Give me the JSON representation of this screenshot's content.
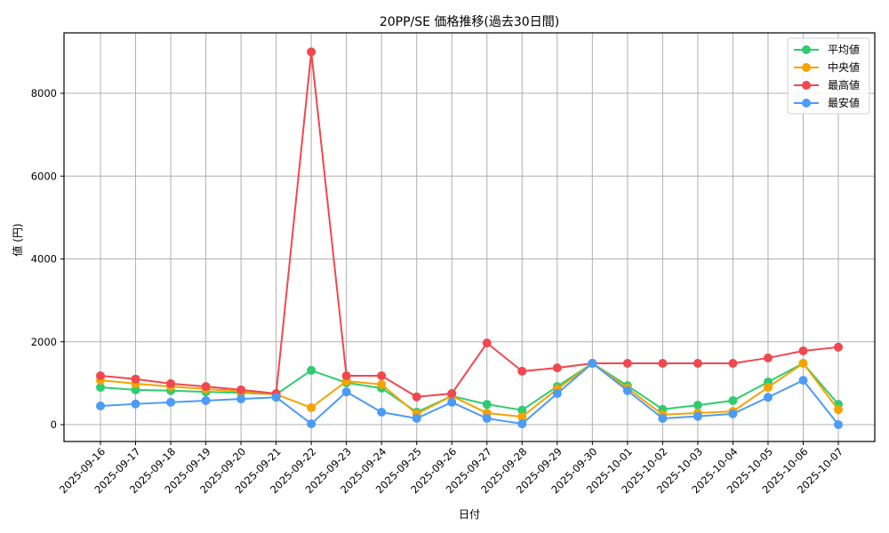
{
  "chart_data": {
    "type": "line",
    "title": "20PP/SE 価格推移(過去30日間)",
    "xlabel": "日付",
    "ylabel": "値 (円)",
    "ylim": [
      -400,
      9450
    ],
    "yticks": [
      0,
      2000,
      4000,
      6000,
      8000
    ],
    "grid": true,
    "legend_position": "upper right",
    "categories": [
      "2025-09-16",
      "2025-09-17",
      "2025-09-18",
      "2025-09-19",
      "2025-09-20",
      "2025-09-21",
      "2025-09-22",
      "2025-09-23",
      "2025-09-24",
      "2025-09-25",
      "2025-09-26",
      "2025-09-27",
      "2025-09-28",
      "2025-09-29",
      "2025-09-30",
      "2025-10-01",
      "2025-10-02",
      "2025-10-03",
      "2025-10-04",
      "2025-10-05",
      "2025-10-06",
      "2025-10-07"
    ],
    "series": [
      {
        "name": "平均値",
        "color": "#2ecc71",
        "values": [
          900,
          840,
          820,
          790,
          770,
          730,
          1310,
          1010,
          880,
          300,
          690,
          490,
          350,
          920,
          1480,
          940,
          370,
          470,
          580,
          1030,
          1480,
          490
        ]
      },
      {
        "name": "中央値",
        "color": "#f5a300",
        "values": [
          1070,
          990,
          920,
          860,
          800,
          730,
          410,
          1050,
          970,
          260,
          690,
          280,
          190,
          860,
          1480,
          880,
          240,
          280,
          320,
          900,
          1480,
          360
        ]
      },
      {
        "name": "最高値",
        "color": "#f0484e",
        "values": [
          1180,
          1100,
          990,
          920,
          840,
          750,
          9000,
          1180,
          1180,
          670,
          750,
          1970,
          1290,
          1370,
          1480,
          1480,
          1480,
          1480,
          1480,
          1610,
          1780,
          1870
        ]
      },
      {
        "name": "最安値",
        "color": "#4c9bf5",
        "values": [
          450,
          500,
          540,
          580,
          620,
          660,
          20,
          790,
          300,
          150,
          540,
          150,
          20,
          750,
          1480,
          820,
          150,
          200,
          260,
          660,
          1070,
          0
        ]
      }
    ]
  }
}
